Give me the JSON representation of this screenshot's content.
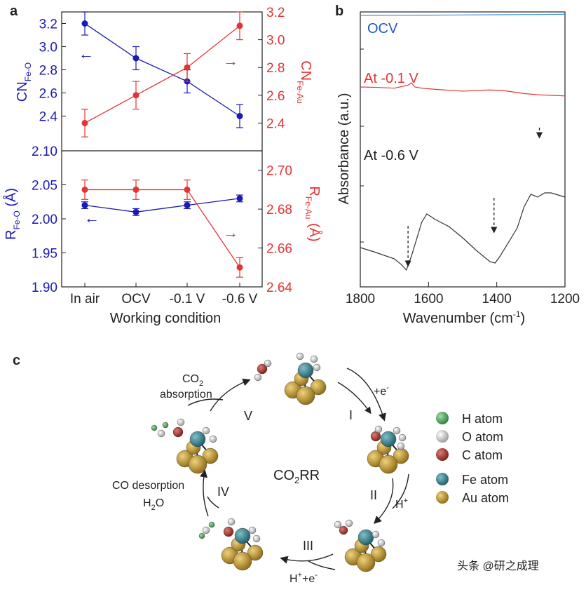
{
  "chart_data": [
    {
      "panel": "a",
      "type": "line",
      "subplot": "top",
      "categories": [
        "In air",
        "OCV",
        "-0.1 V",
        "-0.6 V"
      ],
      "xlabel": "Working condition",
      "left_axis": {
        "label_main": "CN",
        "label_sub": "Fe-O",
        "color": "#1a1ab4",
        "ylim": [
          2.1,
          3.3
        ],
        "ticks": [
          "2.10",
          "2.4",
          "2.6",
          "2.8",
          "3.0",
          "3.2"
        ],
        "tick_values": [
          2.1,
          2.4,
          2.6,
          2.8,
          3.0,
          3.2
        ]
      },
      "right_axis": {
        "label_main": "CN",
        "label_sub": "Fe-Au",
        "color": "#e53333",
        "ylim": [
          2.2,
          3.2
        ],
        "ticks": [
          "2.4",
          "2.6",
          "2.8",
          "3.0",
          "3.2"
        ],
        "tick_values": [
          2.4,
          2.6,
          2.8,
          3.0,
          3.2
        ]
      },
      "series": [
        {
          "name": "CN Fe-O",
          "axis": "left",
          "color": "#1a1ab4",
          "values": [
            3.2,
            2.9,
            2.7,
            2.4
          ],
          "errors": [
            0.1,
            0.1,
            0.1,
            0.1
          ]
        },
        {
          "name": "CN Fe-Au",
          "axis": "right",
          "color": "#e53333",
          "values": [
            2.4,
            2.6,
            2.8,
            3.1
          ],
          "errors": [
            0.1,
            0.1,
            0.1,
            0.1
          ]
        }
      ]
    },
    {
      "panel": "a",
      "type": "line",
      "subplot": "bottom",
      "categories": [
        "In air",
        "OCV",
        "-0.1 V",
        "-0.6 V"
      ],
      "xlabel": "Working condition",
      "left_axis": {
        "label_main": "R",
        "label_sub": "Fe-O",
        "label_unit": " (Å)",
        "color": "#1a1ab4",
        "ylim": [
          1.9,
          2.1
        ],
        "ticks": [
          "1.90",
          "1.95",
          "2.00",
          "2.05"
        ],
        "tick_values": [
          1.9,
          1.95,
          2.0,
          2.05
        ]
      },
      "right_axis": {
        "label_main": "R",
        "label_sub": "Fe-Au",
        "label_unit": " (Å)",
        "color": "#e53333",
        "ylim": [
          2.64,
          2.71
        ],
        "ticks": [
          "2.64",
          "2.66",
          "2.68",
          "2.70"
        ],
        "tick_values": [
          2.64,
          2.66,
          2.68,
          2.7
        ]
      },
      "series": [
        {
          "name": "R Fe-O",
          "axis": "left",
          "color": "#1a1ab4",
          "values": [
            2.02,
            2.01,
            2.02,
            2.03
          ],
          "errors": [
            0.005,
            0.005,
            0.005,
            0.005
          ]
        },
        {
          "name": "R Fe-Au",
          "axis": "right",
          "color": "#e53333",
          "values": [
            2.69,
            2.69,
            2.69,
            2.65
          ],
          "errors": [
            0.005,
            0.005,
            0.005,
            0.005
          ]
        }
      ]
    },
    {
      "panel": "b",
      "type": "line",
      "xlabel_main": "Wavenumber (cm",
      "xlabel_sup": "-1",
      "xlabel_end": ")",
      "ylabel": "Absorbance (a.u.)",
      "xlim": [
        1800,
        1200
      ],
      "x_ticks": [
        "1800",
        "1600",
        "1400",
        "1200"
      ],
      "x_tick_values": [
        1800,
        1600,
        1400,
        1200
      ],
      "series": [
        {
          "name": "OCV",
          "color": "#3b8fe0",
          "x": [
            1800,
            1700,
            1600,
            1500,
            1400,
            1300,
            1200
          ],
          "y": [
            0.9,
            0.91,
            0.92,
            0.935,
            0.95,
            0.965,
            0.98
          ]
        },
        {
          "name": "At -0.1 V",
          "color": "#e53333",
          "x": [
            1800,
            1760,
            1700,
            1660,
            1650,
            1640,
            1620,
            1580,
            1500,
            1420,
            1380,
            1320,
            1280,
            1240,
            1200
          ],
          "y": [
            0.6,
            0.595,
            0.58,
            0.63,
            0.67,
            0.6,
            0.58,
            0.56,
            0.53,
            0.55,
            0.54,
            0.49,
            0.47,
            0.46,
            0.45
          ]
        },
        {
          "name": "At -0.6 V",
          "color": "#333333",
          "x": [
            1800,
            1760,
            1700,
            1680,
            1665,
            1650,
            1620,
            1605,
            1580,
            1540,
            1500,
            1460,
            1420,
            1405,
            1390,
            1340,
            1320,
            1300,
            1280,
            1260,
            1240,
            1200
          ],
          "y": [
            0.16,
            0.13,
            0.08,
            0.04,
            0.0,
            0.1,
            0.34,
            0.4,
            0.36,
            0.31,
            0.23,
            0.14,
            0.06,
            0.05,
            0.1,
            0.3,
            0.45,
            0.54,
            0.52,
            0.55,
            0.55,
            0.52
          ]
        }
      ],
      "arrows_at": [
        1660,
        1408,
        1275
      ]
    }
  ],
  "panels": {
    "a": "a",
    "b": "b",
    "c": "c"
  },
  "cycle": {
    "center_main": "CO",
    "center_sub": "2",
    "center_end": "RR",
    "steps": [
      "I",
      "II",
      "III",
      "IV",
      "V"
    ],
    "labels": {
      "e_plus_main": "+e",
      "e_plus_sup": "-",
      "h_plus_main": "H",
      "h_plus_sup": "+",
      "he_main1": "H",
      "he_sup1": "+",
      "he_main2": "+e",
      "he_sup2": "-",
      "co_desorption": "CO desorption",
      "h2o_main": "H",
      "h2o_sub": "2",
      "h2o_end": "O",
      "co2_main": "CO",
      "co2_sub": "2",
      "absorption": "absorption"
    },
    "legend": [
      {
        "label": "H atom",
        "color": "#4fa35c"
      },
      {
        "label": "O atom",
        "color": "#cfcfcf"
      },
      {
        "label": "C atom",
        "color": "#b23a32"
      },
      {
        "label": "Fe atom",
        "color": "#2f7f8c"
      },
      {
        "label": "Au atom",
        "color": "#b8942a"
      }
    ]
  },
  "arrow_glyphs": {
    "left": "←",
    "right": "→"
  },
  "watermark": "头条 @研之成理"
}
